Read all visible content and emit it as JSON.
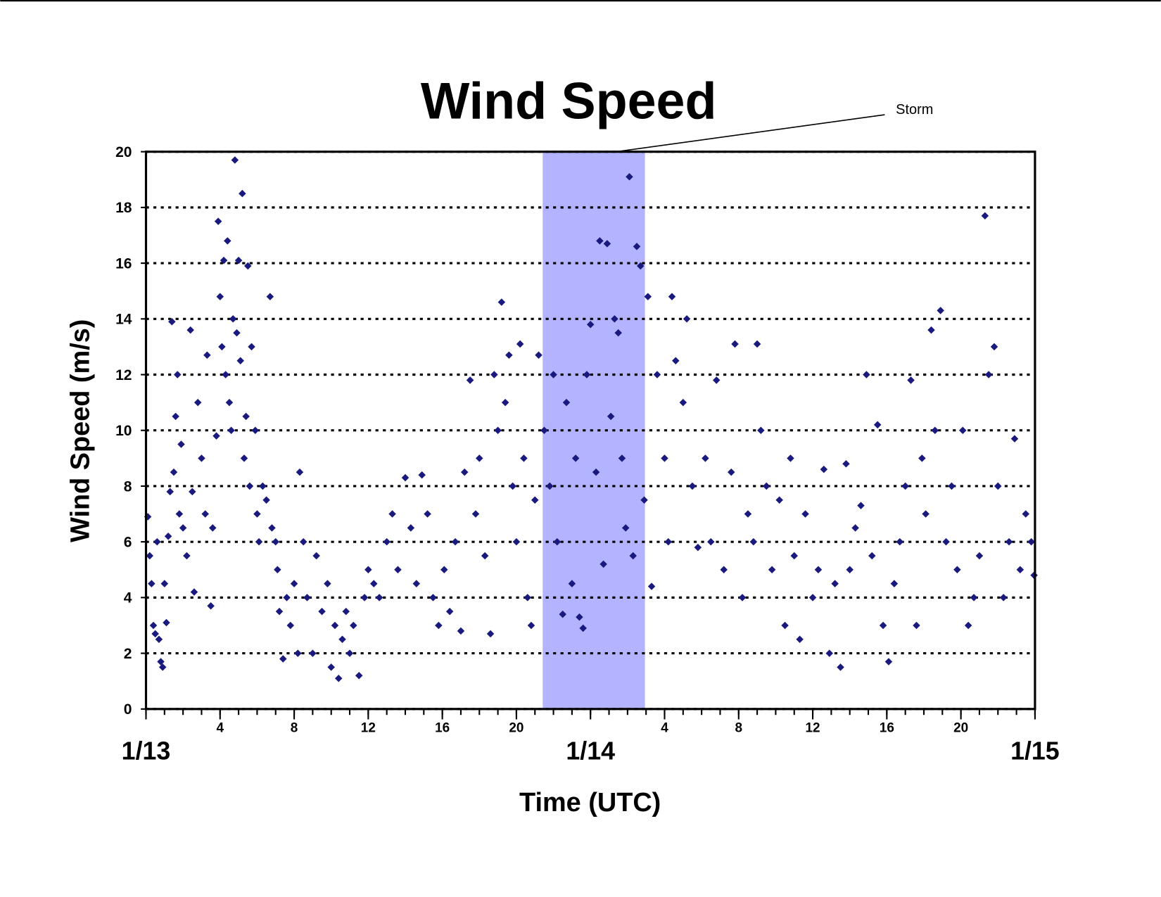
{
  "chart_data": {
    "type": "scatter",
    "title": "Wind Speed",
    "xlabel": "Time (UTC)",
    "ylabel": "Wind Speed (m/s)",
    "color": "#1a1a7e",
    "band_color": "#b3b3ff",
    "grid": true,
    "xlim": [
      0,
      48
    ],
    "ylim": [
      0,
      20
    ],
    "yticks": [
      0,
      2,
      4,
      6,
      8,
      10,
      12,
      14,
      16,
      18,
      20
    ],
    "xticks": [
      4,
      8,
      12,
      16,
      20,
      {
        "value": 28,
        "label": "4"
      },
      {
        "value": 32,
        "label": "8"
      },
      {
        "value": 36,
        "label": "12"
      },
      {
        "value": 40,
        "label": "16"
      },
      {
        "value": 44,
        "label": "20"
      }
    ],
    "xminor_ticks": [
      0,
      1,
      2,
      3,
      4,
      5,
      6,
      7,
      8,
      9,
      10,
      11,
      12,
      13,
      14,
      15,
      16,
      17,
      18,
      19,
      20,
      21,
      22,
      23,
      24,
      25,
      26,
      27,
      28,
      29,
      30,
      31,
      32,
      33,
      34,
      35,
      36,
      37,
      38,
      39,
      40,
      41,
      42,
      43,
      44,
      45,
      46,
      47,
      48
    ],
    "date_ticks": [
      {
        "value": 0,
        "label": "1/13"
      },
      {
        "value": 24,
        "label": "1/14"
      },
      {
        "value": 48,
        "label": "1/15"
      }
    ],
    "storm": {
      "label": "Storm",
      "x0": 21.42,
      "x1": 26.94
    },
    "x": [
      0.1,
      0.2,
      0.3,
      0.4,
      0.5,
      0.6,
      0.7,
      0.8,
      0.9,
      1,
      1.1,
      1.2,
      1.3,
      1.4,
      1.5,
      1.6,
      1.7,
      1.8,
      1.9,
      2,
      2.2,
      2.4,
      2.5,
      2.6,
      2.8,
      3,
      3.2,
      3.3,
      3.5,
      3.6,
      3.8,
      3.9,
      4,
      4.1,
      4.2,
      4.3,
      4.4,
      4.5,
      4.6,
      4.7,
      4.8,
      4.9,
      5,
      5.1,
      5.2,
      5.3,
      5.4,
      5.5,
      5.6,
      5.7,
      5.9,
      6,
      6.1,
      6.3,
      6.5,
      6.7,
      6.8,
      7,
      7.1,
      7.2,
      7.4,
      7.6,
      7.8,
      8,
      8.2,
      8.3,
      8.5,
      8.7,
      9,
      9.2,
      9.5,
      9.8,
      10,
      10.2,
      10.4,
      10.6,
      10.8,
      11,
      11.2,
      11.5,
      11.8,
      12,
      12.3,
      12.6,
      13,
      13.3,
      13.6,
      14,
      14.3,
      14.6,
      14.9,
      15.2,
      15.5,
      15.8,
      16.1,
      16.4,
      16.7,
      17,
      17.2,
      17.5,
      17.8,
      18,
      18.3,
      18.6,
      18.8,
      19,
      19.2,
      19.4,
      19.6,
      19.8,
      20,
      20.2,
      20.4,
      20.6,
      20.8,
      21,
      21.2,
      21.5,
      21.8,
      22,
      22.2,
      22.5,
      22.7,
      23,
      23.2,
      23.4,
      23.6,
      23.8,
      24,
      24.3,
      24.5,
      24.7,
      24.9,
      25.1,
      25.3,
      25.5,
      25.7,
      25.9,
      26.1,
      26.3,
      26.5,
      26.7,
      26.9,
      27.1,
      27.3,
      27.6,
      28,
      28.2,
      28.4,
      28.6,
      29,
      29.2,
      29.5,
      29.8,
      30.2,
      30.5,
      30.8,
      31.2,
      31.6,
      31.8,
      32.2,
      32.5,
      32.8,
      33,
      33.2,
      33.5,
      33.8,
      34.2,
      34.5,
      34.8,
      35,
      35.3,
      35.6,
      36,
      36.3,
      36.6,
      36.9,
      37.2,
      37.5,
      37.8,
      38,
      38.3,
      38.6,
      38.9,
      39.2,
      39.5,
      39.8,
      40.1,
      40.4,
      40.7,
      41,
      41.3,
      41.6,
      41.9,
      42.1,
      42.4,
      42.6,
      42.9,
      43.2,
      43.5,
      43.8,
      44.1,
      44.4,
      44.7,
      45,
      45.3,
      45.5,
      45.8,
      46,
      46.3,
      46.6,
      46.9,
      47.2,
      47.5,
      47.8,
      47.95
    ],
    "values": [
      6.9,
      5.5,
      4.5,
      3,
      2.7,
      6,
      2.5,
      1.7,
      1.5,
      4.5,
      3.1,
      6.2,
      7.8,
      13.9,
      8.5,
      10.5,
      12,
      7,
      9.5,
      6.5,
      5.5,
      13.6,
      7.8,
      4.2,
      11,
      9,
      7,
      12.7,
      3.7,
      6.5,
      9.8,
      17.5,
      14.8,
      13,
      16.1,
      12,
      16.8,
      11,
      10,
      14,
      19.7,
      13.5,
      16.1,
      12.5,
      18.5,
      9,
      10.5,
      15.9,
      8,
      13,
      10,
      7,
      6,
      8,
      7.5,
      14.8,
      6.5,
      6,
      5,
      3.5,
      1.8,
      4,
      3,
      4.5,
      2,
      8.5,
      6,
      4,
      2,
      5.5,
      3.5,
      4.5,
      1.5,
      3,
      1.1,
      2.5,
      3.5,
      2,
      3,
      1.2,
      4,
      5,
      4.5,
      4,
      6,
      7,
      5,
      8.3,
      6.5,
      4.5,
      8.4,
      7,
      4,
      3,
      5,
      3.5,
      6,
      2.8,
      8.5,
      11.8,
      7,
      9,
      5.5,
      2.7,
      12,
      10,
      14.6,
      11,
      12.7,
      8,
      6,
      13.1,
      9,
      4,
      3,
      7.5,
      12.7,
      10,
      8,
      12,
      6,
      3.4,
      11,
      4.5,
      9,
      3.3,
      2.9,
      12,
      13.8,
      8.5,
      16.8,
      5.2,
      16.7,
      10.5,
      14,
      13.5,
      9,
      6.5,
      19.1,
      5.5,
      16.6,
      15.9,
      7.5,
      14.8,
      4.4,
      12,
      9,
      6,
      14.8,
      12.5,
      11,
      14,
      8,
      5.8,
      9,
      6,
      11.8,
      5,
      8.5,
      13.1,
      4,
      7,
      6,
      13.1,
      10,
      8,
      5,
      7.5,
      3,
      9,
      5.5,
      2.5,
      7,
      4,
      5,
      8.6,
      2,
      4.5,
      1.5,
      8.8,
      5,
      6.5,
      7.3,
      12,
      5.5,
      10.2,
      3,
      1.7,
      4.5,
      6,
      8,
      11.8,
      3,
      9,
      7,
      13.6,
      10,
      14.3,
      6,
      8,
      5,
      10,
      3,
      4,
      5.5,
      17.7,
      12,
      13,
      8,
      4,
      6,
      9.7,
      5,
      7,
      6,
      4.8
    ]
  }
}
